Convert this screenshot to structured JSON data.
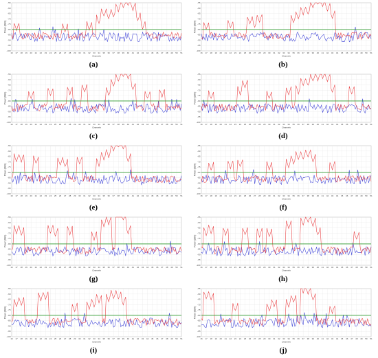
{
  "figure": {
    "x_axis_label": "Channels",
    "y_axis_label": "Power (dBm)",
    "x_ticks": [
      "16",
      "17",
      "18",
      "19",
      "20",
      "21",
      "22",
      "23",
      "24",
      "25",
      "26",
      "27",
      "28",
      "29",
      "30",
      "31",
      "32",
      "33",
      "34",
      "35",
      "36",
      "37",
      "38",
      "39",
      "40",
      "41",
      "42",
      "43",
      "44",
      "45",
      "46",
      "47",
      "48",
      "49",
      "50",
      "51"
    ],
    "series_colors": {
      "red": "#e8383b",
      "blue": "#3a3fd6",
      "threshold": "#2e9a2e"
    }
  },
  "chart_data": [
    {
      "type": "line",
      "label": "(a)",
      "ylim": [
        -100,
        -55
      ],
      "threshold": -80,
      "peaks": [
        [
          17,
          -81
        ],
        [
          27,
          -82
        ],
        [
          32,
          -80
        ],
        [
          34,
          -74
        ],
        [
          35,
          -68
        ],
        [
          36,
          -70
        ],
        [
          37,
          -68
        ],
        [
          38,
          -63
        ],
        [
          39,
          -60
        ],
        [
          40,
          -58
        ],
        [
          41,
          -62
        ],
        [
          42,
          -72
        ],
        [
          43,
          -80
        ]
      ]
    },
    {
      "type": "line",
      "label": "(b)",
      "ylim": [
        -100,
        -55
      ],
      "threshold": -80,
      "peaks": [
        [
          17,
          -80
        ],
        [
          22,
          -79
        ],
        [
          26,
          -75
        ],
        [
          27,
          -78
        ],
        [
          28,
          -73
        ],
        [
          35,
          -74
        ],
        [
          36,
          -70
        ],
        [
          37,
          -66
        ],
        [
          38,
          -66
        ],
        [
          39,
          -60
        ],
        [
          40,
          -57
        ],
        [
          41,
          -59
        ],
        [
          42,
          -63
        ],
        [
          43,
          -70
        ]
      ]
    },
    {
      "type": "line",
      "label": "(c)",
      "ylim": [
        -100,
        -55
      ],
      "threshold": -80,
      "peaks": [
        [
          20,
          -78
        ],
        [
          24,
          -75
        ],
        [
          28,
          -74
        ],
        [
          31,
          -72
        ],
        [
          36,
          -75
        ],
        [
          37,
          -66
        ],
        [
          38,
          -62
        ],
        [
          39,
          -57
        ],
        [
          40,
          -60
        ],
        [
          41,
          -70
        ],
        [
          44,
          -78
        ],
        [
          47,
          -76
        ]
      ]
    },
    {
      "type": "line",
      "label": "(d)",
      "ylim": [
        -100,
        -55
      ],
      "threshold": -80,
      "peaks": [
        [
          18,
          -78
        ],
        [
          24,
          -74
        ],
        [
          25,
          -68
        ],
        [
          30,
          -78
        ],
        [
          34,
          -74
        ],
        [
          36,
          -73
        ],
        [
          37,
          -66
        ],
        [
          38,
          -66
        ],
        [
          39,
          -62
        ],
        [
          40,
          -61
        ],
        [
          41,
          -59
        ],
        [
          42,
          -62
        ],
        [
          43,
          -72
        ],
        [
          47,
          -74
        ]
      ]
    },
    {
      "type": "line",
      "label": "(e)",
      "ylim": [
        -100,
        -55
      ],
      "threshold": -80,
      "peaks": [
        [
          17,
          -70
        ],
        [
          18,
          -70
        ],
        [
          21,
          -72
        ],
        [
          26,
          -73
        ],
        [
          27,
          -75
        ],
        [
          30,
          -72
        ],
        [
          34,
          -74
        ],
        [
          35,
          -68
        ],
        [
          36,
          -66
        ],
        [
          37,
          -60
        ],
        [
          38,
          -56
        ],
        [
          39,
          -58
        ],
        [
          40,
          -70
        ]
      ]
    },
    {
      "type": "line",
      "label": "(f)",
      "ylim": [
        -100,
        -55
      ],
      "threshold": -80,
      "peaks": [
        [
          18,
          -78
        ],
        [
          22,
          -76
        ],
        [
          24,
          -75
        ],
        [
          30,
          -77
        ],
        [
          34,
          -75
        ],
        [
          35,
          -72
        ],
        [
          36,
          -68
        ],
        [
          37,
          -68
        ],
        [
          38,
          -66
        ],
        [
          39,
          -70
        ],
        [
          43,
          -77
        ]
      ]
    },
    {
      "type": "line",
      "label": "(g)",
      "ylim": [
        -100,
        -55
      ],
      "threshold": -80,
      "peaks": [
        [
          17,
          -70
        ],
        [
          18,
          -72
        ],
        [
          24,
          -70
        ],
        [
          25,
          -73
        ],
        [
          28,
          -71
        ],
        [
          33,
          -76
        ],
        [
          35,
          -64
        ],
        [
          36,
          -62
        ],
        [
          38,
          -55
        ],
        [
          39,
          -57
        ],
        [
          40,
          -70
        ]
      ]
    },
    {
      "type": "line",
      "label": "(h)",
      "ylim": [
        -100,
        -55
      ],
      "threshold": -80,
      "peaks": [
        [
          17,
          -72
        ],
        [
          18,
          -70
        ],
        [
          21,
          -72
        ],
        [
          25,
          -72
        ],
        [
          28,
          -73
        ],
        [
          30,
          -73
        ],
        [
          34,
          -66
        ],
        [
          37,
          -62
        ],
        [
          38,
          -60
        ],
        [
          39,
          -63
        ],
        [
          40,
          -72
        ],
        [
          48,
          -76
        ]
      ]
    },
    {
      "type": "line",
      "label": "(i)",
      "ylim": [
        -100,
        -55
      ],
      "threshold": -80,
      "peaks": [
        [
          17,
          -72
        ],
        [
          18,
          -70
        ],
        [
          22,
          -66
        ],
        [
          23,
          -65
        ],
        [
          29,
          -76
        ],
        [
          32,
          -74
        ],
        [
          33,
          -72
        ],
        [
          34,
          -68
        ],
        [
          36,
          -67
        ],
        [
          37,
          -64
        ],
        [
          38,
          -65
        ],
        [
          39,
          -70
        ]
      ]
    },
    {
      "type": "line",
      "label": "(j)",
      "ylim": [
        -100,
        -55
      ],
      "threshold": -80,
      "peaks": [
        [
          17,
          -65
        ],
        [
          18,
          -66
        ],
        [
          23,
          -76
        ],
        [
          30,
          -76
        ],
        [
          31,
          -72
        ],
        [
          34,
          -72
        ],
        [
          35,
          -68
        ],
        [
          37,
          -59
        ],
        [
          38,
          -60
        ],
        [
          39,
          -66
        ],
        [
          43,
          -78
        ]
      ]
    }
  ]
}
